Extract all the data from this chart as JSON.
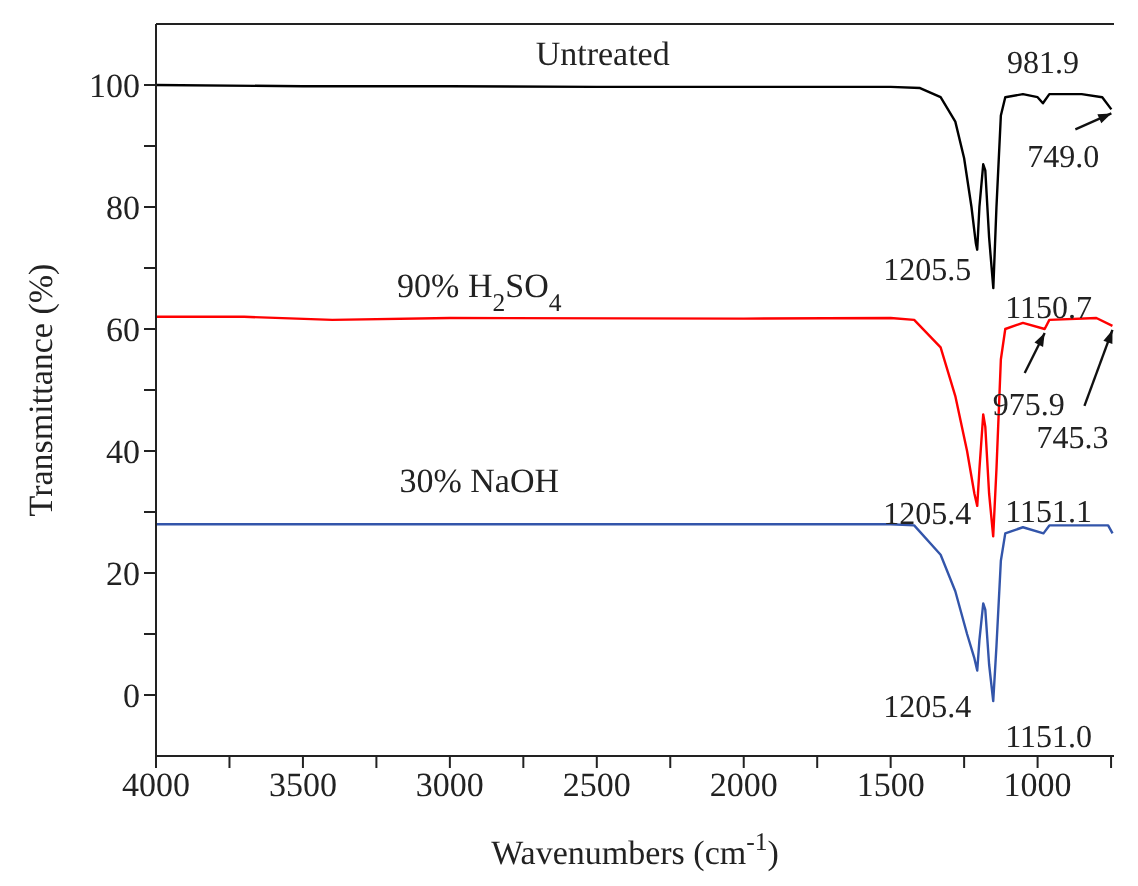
{
  "chart_data": {
    "type": "line",
    "xlabel": "Wavenumbers (cm$^{-1}$)",
    "ylabel": "Transmittance (%)",
    "xlim": [
      4000,
      740
    ],
    "ylim": [
      -10,
      110
    ],
    "xticks": [
      4000,
      {
        "value": 3750,
        "label": null
      },
      3500,
      {
        "value": 3250,
        "label": null
      },
      3000,
      {
        "value": 2750,
        "label": null
      },
      2500,
      {
        "value": 2250,
        "label": null
      },
      2000,
      {
        "value": 1750,
        "label": null
      },
      1500,
      {
        "value": 1250,
        "label": null
      },
      1000,
      {
        "value": 750,
        "label": null
      }
    ],
    "yticks": [
      0,
      {
        "value": 10,
        "label": null
      },
      20,
      {
        "value": 30,
        "label": null
      },
      40,
      {
        "value": 50,
        "label": null
      },
      60,
      {
        "value": 70,
        "label": null
      },
      80,
      {
        "value": 90,
        "label": null
      },
      100
    ],
    "marker": "none",
    "line_style": "solid",
    "series": [
      {
        "name": "Untreated",
        "color": "#000000",
        "x": [
          4000,
          3500,
          3000,
          2500,
          2000,
          1500,
          1400,
          1330,
          1280,
          1250,
          1225,
          1210,
          1205.5,
          1198,
          1185,
          1178,
          1165,
          1150.7,
          1140,
          1125,
          1110,
          1050,
          1000,
          981.9,
          960,
          850,
          780,
          749
        ],
        "values": [
          100,
          99.8,
          99.8,
          99.7,
          99.7,
          99.7,
          99.5,
          98,
          94,
          88,
          80,
          74,
          73,
          80,
          87,
          86,
          75,
          66.7,
          80,
          95,
          98,
          98.5,
          98,
          97,
          98.5,
          98.5,
          98,
          96
        ]
      },
      {
        "name": "90% H$_{2}$SO$_{4}$",
        "color": "#ff0000",
        "x": [
          4000,
          3700,
          3400,
          3000,
          2000,
          1500,
          1420,
          1330,
          1280,
          1240,
          1215,
          1205.4,
          1198,
          1185,
          1178,
          1165,
          1151.1,
          1140,
          1125,
          1110,
          1050,
          975.9,
          960,
          800,
          745.3
        ],
        "values": [
          62,
          62,
          61.5,
          61.8,
          61.7,
          61.8,
          61.5,
          57,
          49,
          40,
          33,
          31,
          37,
          46,
          44,
          33,
          26,
          37,
          55,
          60,
          61,
          60,
          61.5,
          61.8,
          60.5
        ]
      },
      {
        "name": "30% NaOH",
        "color": "#3355aa",
        "x": [
          4000,
          3000,
          2000,
          1500,
          1420,
          1330,
          1280,
          1240,
          1215,
          1205.4,
          1198,
          1185,
          1178,
          1165,
          1151,
          1140,
          1125,
          1110,
          1050,
          980,
          960,
          760,
          745
        ],
        "values": [
          28,
          28,
          28,
          28,
          27.8,
          23,
          17,
          10,
          6,
          4,
          9,
          15,
          14,
          5,
          -1,
          8,
          22,
          26.5,
          27.5,
          26.5,
          27.8,
          27.8,
          26.5
        ]
      }
    ],
    "annotations": [
      {
        "text": "981.9",
        "x": 981.9,
        "y": 97
      },
      {
        "text": "749.0",
        "x": 749,
        "y": 96
      },
      {
        "text": "1205.5",
        "x": 1205.5,
        "y": 73
      },
      {
        "text": "1150.7",
        "x": 1150.7,
        "y": 66.7
      },
      {
        "text": "975.9",
        "x": 975.9,
        "y": 60
      },
      {
        "text": "745.3",
        "x": 745.3,
        "y": 60.5
      },
      {
        "text": "1205.4",
        "x": 1205.4,
        "y": 31
      },
      {
        "text": "1151.1",
        "x": 1151.1,
        "y": 26
      },
      {
        "text": "1205.4",
        "x": 1205.4,
        "y": 4
      },
      {
        "text": "1151.0",
        "x": 1151,
        "y": -1
      }
    ]
  }
}
